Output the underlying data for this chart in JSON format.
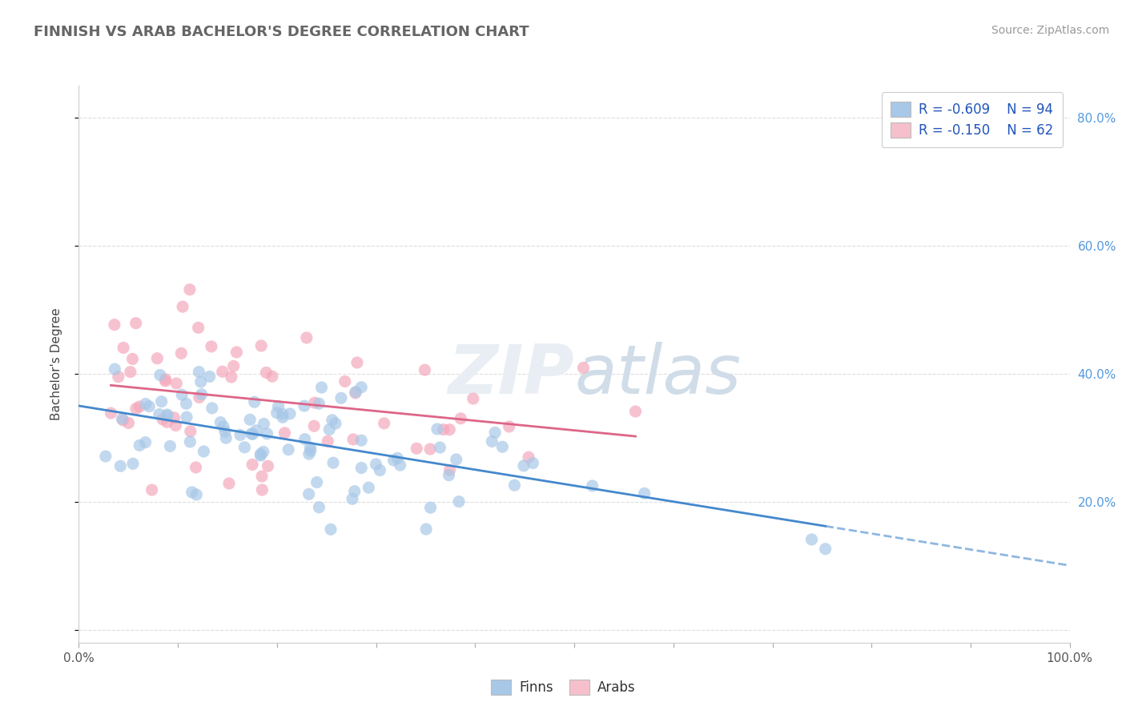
{
  "title": "FINNISH VS ARAB BACHELOR'S DEGREE CORRELATION CHART",
  "source": "Source: ZipAtlas.com",
  "ylabel": "Bachelor's Degree",
  "xlim": [
    0.0,
    1.0
  ],
  "ylim": [
    -0.02,
    0.85
  ],
  "xticks": [
    0.0,
    0.1,
    0.2,
    0.3,
    0.4,
    0.5,
    0.6,
    0.7,
    0.8,
    0.9,
    1.0
  ],
  "xticklabels": [
    "0.0%",
    "",
    "",
    "",
    "",
    "",
    "",
    "",
    "",
    "",
    "100.0%"
  ],
  "yticks": [
    0.0,
    0.2,
    0.4,
    0.6,
    0.8
  ],
  "yticklabels_right": [
    "",
    "20.0%",
    "40.0%",
    "60.0%",
    "80.0%"
  ],
  "finns_R": -0.609,
  "finns_N": 94,
  "arabs_R": -0.15,
  "arabs_N": 62,
  "finns_color": "#a8c8e8",
  "arabs_color": "#f5a8bc",
  "finns_line_color": "#4488cc",
  "arabs_line_color": "#dd6688",
  "legend_finns_fill": "#a8c8e8",
  "legend_arabs_fill": "#f5c0cc",
  "background_color": "#ffffff",
  "grid_color": "#dddddd",
  "finns_line_intercept": 0.345,
  "finns_line_slope": -0.27,
  "arabs_line_intercept": 0.345,
  "arabs_line_slope": -0.08
}
